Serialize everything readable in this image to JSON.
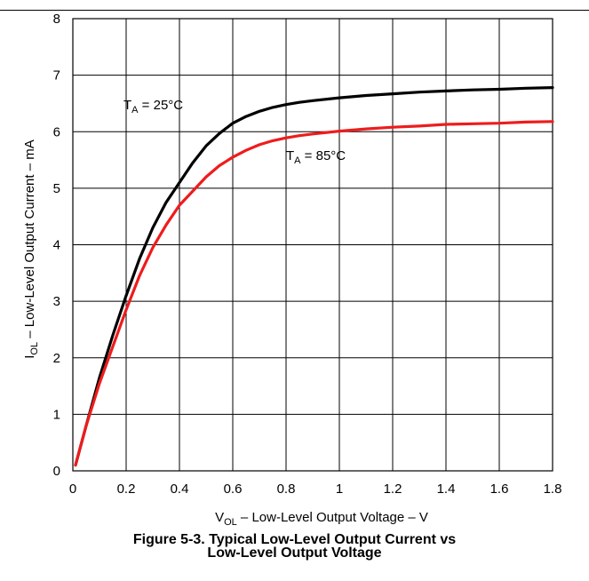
{
  "figure": {
    "caption_line1": "Figure 5-3. Typical Low-Level Output Current vs",
    "caption_line2": "Low-Level Output Voltage"
  },
  "chart_data": {
    "type": "line",
    "title": "",
    "xlabel": {
      "main": "V",
      "sub": "OL",
      "rest": " – Low-Level Output Voltage – V"
    },
    "ylabel": {
      "main": "I",
      "sub": "OL",
      "rest": " – Low-Level Output Current – mA"
    },
    "xlim": [
      0,
      1.8
    ],
    "ylim": [
      0,
      8
    ],
    "x_ticks": [
      0,
      0.2,
      0.4,
      0.6,
      0.8,
      1,
      1.2,
      1.4,
      1.6,
      1.8
    ],
    "x_tick_labels": [
      "0",
      "0.2",
      "0.4",
      "0.6",
      "0.8",
      "1",
      "1.2",
      "1.4",
      "1.6",
      "1.8"
    ],
    "y_ticks": [
      0,
      1,
      2,
      3,
      4,
      5,
      6,
      7,
      8
    ],
    "y_tick_labels": [
      "0",
      "1",
      "2",
      "3",
      "4",
      "5",
      "6",
      "7",
      "8"
    ],
    "grid": true,
    "series": [
      {
        "name": "TA = 25°C",
        "label_main": "T",
        "label_sub": "A",
        "label_rest": " = 25°C",
        "label_at": [
          0.19,
          6.4
        ],
        "color": "#000000",
        "x": [
          0.01,
          0.05,
          0.1,
          0.15,
          0.2,
          0.25,
          0.3,
          0.35,
          0.4,
          0.45,
          0.5,
          0.55,
          0.6,
          0.65,
          0.7,
          0.75,
          0.8,
          0.85,
          0.9,
          1.0,
          1.1,
          1.2,
          1.3,
          1.4,
          1.5,
          1.6,
          1.7,
          1.8
        ],
        "y": [
          0.1,
          0.8,
          1.65,
          2.4,
          3.1,
          3.75,
          4.3,
          4.75,
          5.1,
          5.45,
          5.75,
          5.97,
          6.15,
          6.27,
          6.36,
          6.43,
          6.48,
          6.52,
          6.55,
          6.6,
          6.64,
          6.67,
          6.7,
          6.72,
          6.74,
          6.75,
          6.77,
          6.78
        ]
      },
      {
        "name": "TA = 85°C",
        "label_main": "T",
        "label_sub": "A",
        "label_rest": " = 85°C",
        "label_at": [
          0.8,
          5.5
        ],
        "color": "#ee1c1c",
        "x": [
          0.01,
          0.05,
          0.1,
          0.15,
          0.2,
          0.25,
          0.3,
          0.35,
          0.4,
          0.45,
          0.5,
          0.55,
          0.6,
          0.65,
          0.7,
          0.75,
          0.8,
          0.85,
          0.9,
          1.0,
          1.1,
          1.2,
          1.3,
          1.4,
          1.5,
          1.6,
          1.7,
          1.8
        ],
        "y": [
          0.1,
          0.8,
          1.55,
          2.2,
          2.85,
          3.45,
          3.95,
          4.35,
          4.7,
          4.95,
          5.2,
          5.4,
          5.55,
          5.67,
          5.77,
          5.84,
          5.89,
          5.93,
          5.96,
          6.01,
          6.05,
          6.08,
          6.1,
          6.13,
          6.14,
          6.15,
          6.17,
          6.18
        ]
      }
    ]
  }
}
